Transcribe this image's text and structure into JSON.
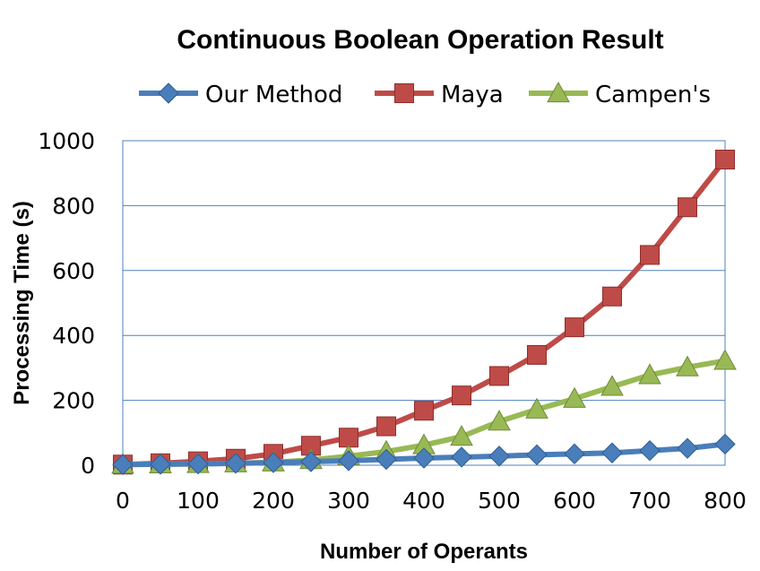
{
  "chart_data": {
    "type": "line",
    "title": "Continuous Boolean Operation Result",
    "xlabel": "Number of Operants",
    "ylabel": "Processing Time (s)",
    "x": [
      0,
      50,
      100,
      150,
      200,
      250,
      300,
      350,
      400,
      450,
      500,
      550,
      600,
      650,
      700,
      750,
      800
    ],
    "xticks": [
      "0",
      "100",
      "200",
      "300",
      "400",
      "500",
      "600",
      "700",
      "800"
    ],
    "xtick_values": [
      0,
      100,
      200,
      300,
      400,
      500,
      600,
      700,
      800
    ],
    "yticks": [
      "0",
      "200",
      "400",
      "600",
      "800",
      "1000"
    ],
    "ytick_values": [
      0,
      200,
      400,
      600,
      800,
      1000
    ],
    "xlim": [
      0,
      800
    ],
    "ylim": [
      0,
      1000
    ],
    "grid": "horizontal",
    "legend_position": "top",
    "series": [
      {
        "name": "Our Method",
        "color": "#4a7ebb",
        "marker": "diamond",
        "values": [
          2,
          3,
          4,
          6,
          8,
          11,
          14,
          18,
          22,
          25,
          28,
          32,
          35,
          38,
          45,
          52,
          65
        ]
      },
      {
        "name": "Maya",
        "color": "#be4b48",
        "marker": "square",
        "values": [
          2,
          6,
          12,
          20,
          35,
          60,
          85,
          120,
          168,
          215,
          275,
          340,
          425,
          520,
          648,
          795,
          942
        ]
      },
      {
        "name": "Campen's",
        "color": "#98b954",
        "marker": "triangle",
        "values": [
          2,
          3,
          4,
          6,
          9,
          16,
          28,
          42,
          62,
          88,
          135,
          172,
          205,
          242,
          278,
          302,
          322
        ]
      }
    ]
  }
}
